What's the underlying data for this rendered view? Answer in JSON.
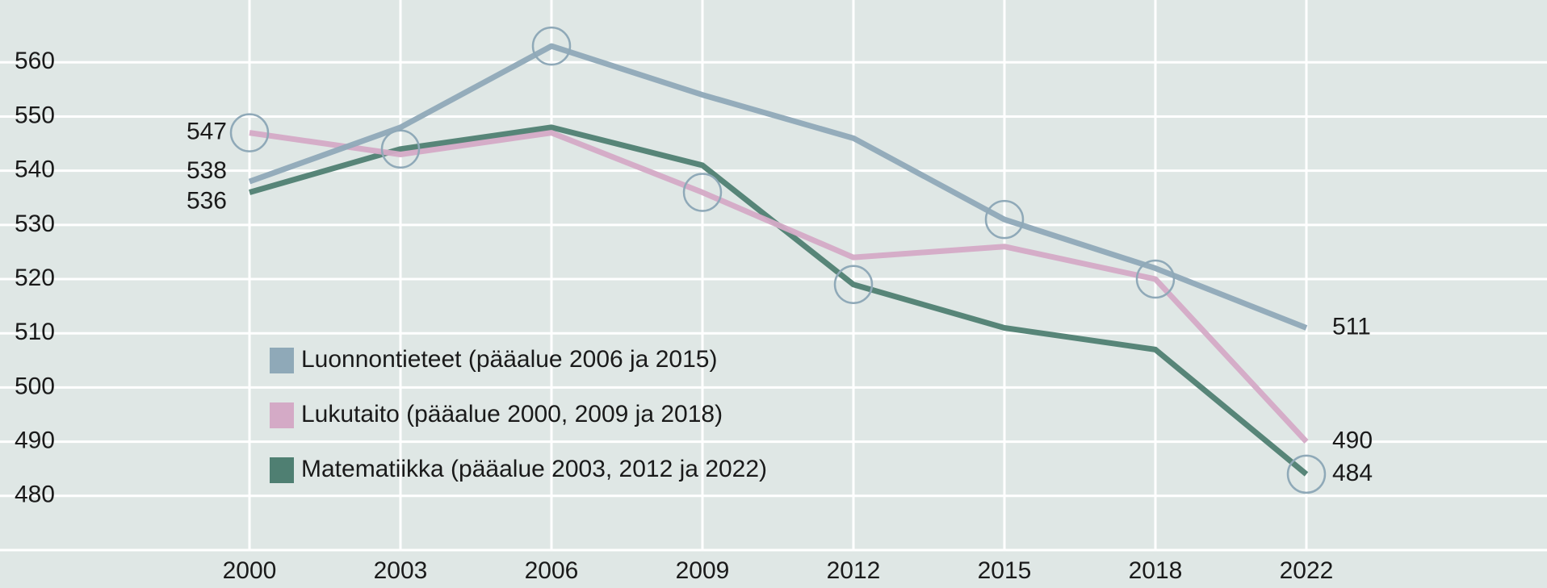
{
  "chart_data": {
    "type": "line",
    "categories": [
      "2000",
      "2003",
      "2006",
      "2009",
      "2012",
      "2015",
      "2018",
      "2022"
    ],
    "series": [
      {
        "name": "Matematiikka (pääalue 2003, 2012 ja 2022)",
        "color": "#4f7f72",
        "values": [
          536,
          544,
          548,
          541,
          519,
          511,
          507,
          484
        ],
        "markers": [
          1,
          4,
          7
        ]
      },
      {
        "name": "Lukutaito (pääalue 2000, 2009 ja 2018)",
        "color": "#d4aac6",
        "values": [
          547,
          543,
          547,
          536,
          524,
          526,
          520,
          490
        ],
        "markers": [
          0,
          3,
          6
        ]
      },
      {
        "name": "Luonnontieteet (pääalue 2006 ja 2015)",
        "color": "#8fa9b8",
        "values": [
          538,
          548,
          563,
          554,
          546,
          531,
          522,
          511
        ],
        "markers": [
          2,
          5
        ]
      }
    ],
    "ylim": [
      470,
      571.5
    ],
    "yticks": [
      480,
      490,
      500,
      510,
      520,
      530,
      540,
      550,
      560
    ],
    "grid": true
  }
}
